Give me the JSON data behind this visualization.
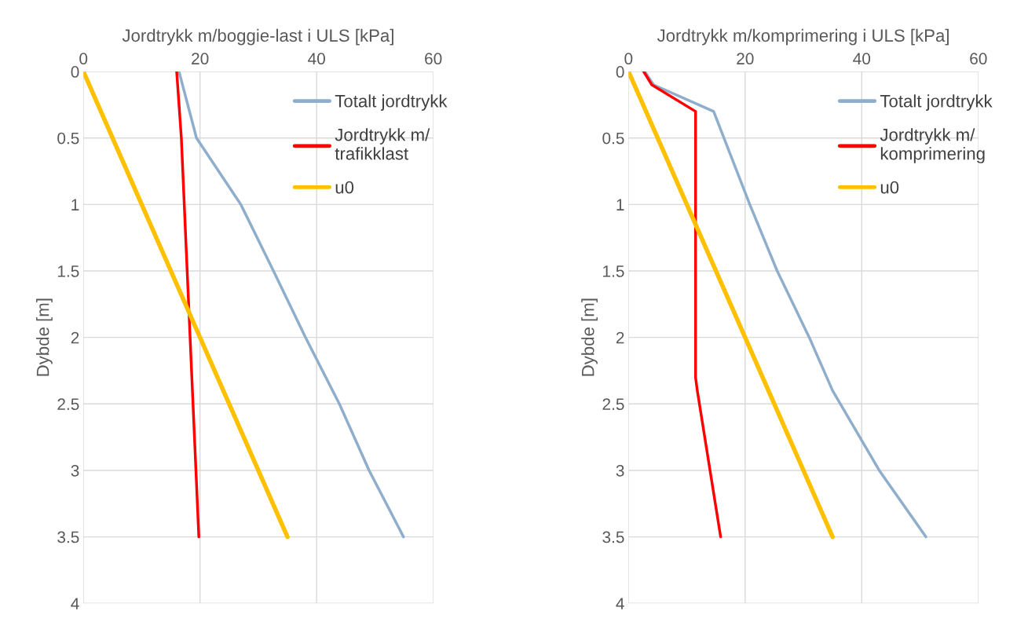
{
  "chart_data": [
    {
      "type": "line",
      "xlabel": "Jordtrykk m/boggie-last i ULS [kPa]",
      "ylabel": "Dybde [m]",
      "xlim": [
        0,
        60
      ],
      "xticks": [
        0,
        20,
        40,
        60
      ],
      "ylim": [
        4,
        0
      ],
      "yticks": [
        0,
        0.5,
        1,
        1.5,
        2,
        2.5,
        3,
        3.5,
        4
      ],
      "grid": true,
      "legend": "top right",
      "series": [
        {
          "name": "Totalt jordtrykk",
          "color": "#8faecb",
          "x": [
            16.4,
            19.4,
            27,
            32.6,
            38.1,
            43.9,
            49,
            54.9
          ],
          "values": [
            0,
            0.5,
            1,
            1.5,
            2,
            2.5,
            3,
            3.5
          ]
        },
        {
          "name": "Jordtrykk m/\ntrafikklast",
          "color": "#ff0000",
          "x": [
            16,
            16.8,
            17.3,
            17.8,
            18.3,
            18.8,
            19.3,
            19.8
          ],
          "values": [
            0,
            0.5,
            1,
            1.5,
            2,
            2.5,
            3,
            3.5
          ]
        },
        {
          "name": "u0",
          "color": "#ffc000",
          "x": [
            0,
            35
          ],
          "values": [
            0,
            3.5
          ]
        }
      ]
    },
    {
      "type": "line",
      "xlabel": "Jordtrykk m/komprimering i ULS [kPa]",
      "ylabel": "Dybde [m]",
      "xlim": [
        0,
        60
      ],
      "xticks": [
        0,
        20,
        40,
        60
      ],
      "ylim": [
        4,
        0
      ],
      "yticks": [
        0,
        0.5,
        1,
        1.5,
        2,
        2.5,
        3,
        3.5,
        4
      ],
      "grid": true,
      "legend": "top right",
      "series": [
        {
          "name": "Totalt jordtrykk",
          "color": "#8faecb",
          "x": [
            2.8,
            4.3,
            14.6,
            20.8,
            25.5,
            31,
            35,
            43,
            51
          ],
          "values": [
            0,
            0.1,
            0.3,
            1,
            1.5,
            2,
            2.4,
            3,
            3.5
          ]
        },
        {
          "name": "Jordtrykk m/\nkomprimering",
          "color": "#ff0000",
          "x": [
            2.6,
            4,
            11.5,
            11.5,
            11.8,
            15.8
          ],
          "values": [
            0,
            0.1,
            0.3,
            2.3,
            2.4,
            3.5
          ]
        },
        {
          "name": "u0",
          "color": "#ffc000",
          "x": [
            0,
            35
          ],
          "values": [
            0,
            3.5
          ]
        }
      ]
    }
  ]
}
